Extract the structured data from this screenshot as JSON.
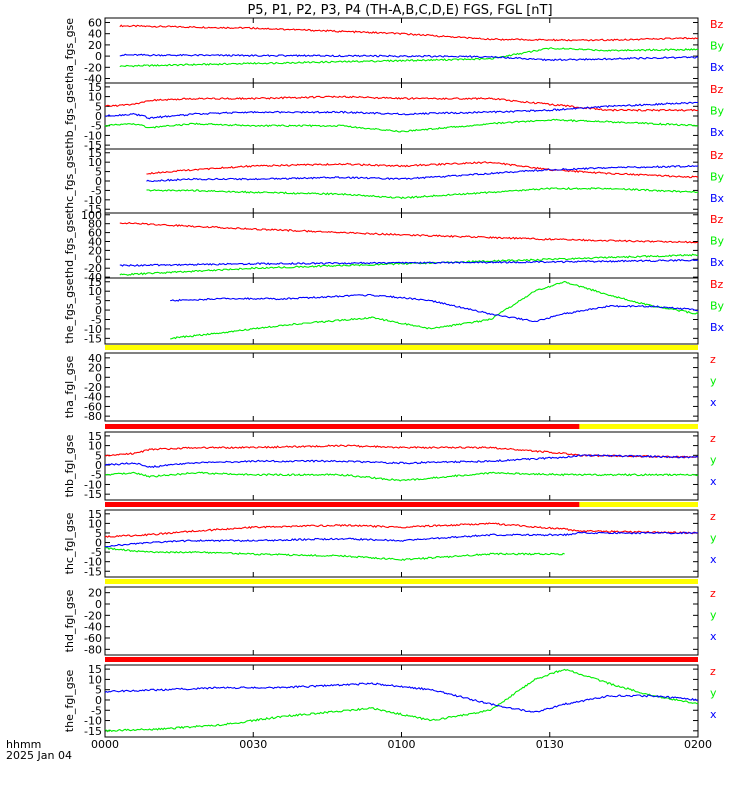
{
  "title": "P5, P1, P2, P3, P4 (TH-A,B,C,D,E) FGS, FGL [nT]",
  "footer": {
    "label_line1": "hhmm",
    "label_line2": "2025 Jan 04"
  },
  "time_axis": {
    "ticks": [
      "0000",
      "0030",
      "0100",
      "0130",
      "0200"
    ],
    "range_hours": [
      0,
      2
    ]
  },
  "colors": {
    "x": "#0000ff",
    "y": "#00ee00",
    "z": "#ff0000",
    "bar_red": "#ff0000",
    "bar_yellow": "#ffff00"
  },
  "chart_data": [
    {
      "type": "line",
      "ylabel": "tha_fgs_gse",
      "ylim": [
        -48,
        68
      ],
      "ticks": [
        "60",
        "40",
        "20",
        "0",
        "-20",
        "-40"
      ],
      "series": [
        {
          "name": "Bz",
          "color": "red",
          "x": [
            0.05,
            0.5,
            1.0,
            1.3,
            1.6,
            2.0
          ],
          "y": [
            54,
            50,
            40,
            30,
            28,
            32
          ]
        },
        {
          "name": "By",
          "color": "green",
          "x": [
            0.05,
            0.5,
            1.0,
            1.3,
            1.5,
            1.7,
            2.0
          ],
          "y": [
            -18,
            -13,
            -8,
            -5,
            14,
            10,
            12
          ]
        },
        {
          "name": "Bx",
          "color": "blue",
          "x": [
            0.05,
            0.5,
            1.0,
            1.3,
            1.5,
            1.7,
            2.0
          ],
          "y": [
            2,
            1,
            0,
            -1,
            -7,
            -5,
            -2
          ]
        }
      ]
    },
    {
      "type": "line",
      "ylabel": "thb_fgs_gse",
      "ylim": [
        -17,
        17
      ],
      "ticks": [
        "15",
        "10",
        "5",
        "0",
        "-5",
        "-10",
        "-15"
      ],
      "series": [
        {
          "name": "Bz",
          "color": "red",
          "x": [
            0,
            0.1,
            0.15,
            0.3,
            0.5,
            0.8,
            1.0,
            1.3,
            1.5,
            1.7,
            2.0
          ],
          "y": [
            5,
            6,
            8,
            9,
            9,
            10,
            9,
            9,
            6,
            3,
            3
          ]
        },
        {
          "name": "By",
          "color": "green",
          "x": [
            0,
            0.1,
            0.15,
            0.3,
            0.5,
            0.8,
            1.0,
            1.3,
            1.5,
            1.7,
            2.0
          ],
          "y": [
            -5,
            -4,
            -6,
            -4,
            -5,
            -5,
            -8,
            -4,
            -2,
            -3,
            -5
          ]
        },
        {
          "name": "Bx",
          "color": "blue",
          "x": [
            0,
            0.1,
            0.15,
            0.3,
            0.5,
            0.8,
            1.0,
            1.3,
            1.5,
            1.7,
            2.0
          ],
          "y": [
            0,
            1,
            -1,
            1,
            2,
            2,
            1,
            2,
            3,
            5,
            7
          ]
        }
      ]
    },
    {
      "type": "line",
      "ylabel": "thc_fgs_gse",
      "ylim": [
        -17,
        17
      ],
      "ticks": [
        "15",
        "10",
        "5",
        "0",
        "-5",
        "-10",
        "-15"
      ],
      "series": [
        {
          "name": "Bz",
          "color": "red",
          "x": [
            0.14,
            0.3,
            0.5,
            0.8,
            1.0,
            1.3,
            1.5,
            1.7,
            2.0
          ],
          "y": [
            4,
            6,
            8,
            9,
            8,
            10,
            6,
            4,
            2
          ]
        },
        {
          "name": "By",
          "color": "green",
          "x": [
            0.14,
            0.3,
            0.5,
            0.8,
            1.0,
            1.3,
            1.5,
            1.7,
            2.0
          ],
          "y": [
            -5,
            -5,
            -6,
            -7,
            -9,
            -6,
            -4,
            -4,
            -6
          ]
        },
        {
          "name": "Bx",
          "color": "blue",
          "x": [
            0.14,
            0.3,
            0.5,
            0.8,
            1.0,
            1.3,
            1.5,
            1.7,
            2.0
          ],
          "y": [
            0,
            1,
            1,
            2,
            1,
            4,
            6,
            7,
            8
          ]
        }
      ]
    },
    {
      "type": "line",
      "ylabel": "thd_fgs_gse",
      "ylim": [
        -42,
        104
      ],
      "ticks": [
        "100",
        "80",
        "60",
        "40",
        "20",
        "0",
        "-20",
        "-40"
      ],
      "series": [
        {
          "name": "Bz",
          "color": "red",
          "x": [
            0.05,
            0.5,
            1.0,
            1.5,
            2.0
          ],
          "y": [
            82,
            68,
            55,
            45,
            38
          ]
        },
        {
          "name": "By",
          "color": "green",
          "x": [
            0.05,
            0.5,
            1.0,
            1.5,
            2.0
          ],
          "y": [
            -35,
            -20,
            -10,
            0,
            10
          ]
        },
        {
          "name": "Bx",
          "color": "blue",
          "x": [
            0.05,
            0.5,
            1.0,
            1.5,
            2.0
          ],
          "y": [
            -14,
            -10,
            -8,
            -6,
            -2
          ]
        }
      ]
    },
    {
      "type": "line",
      "ylabel": "the_fgs_gse",
      "ylim": [
        -18,
        17
      ],
      "ticks": [
        "15",
        "10",
        "5",
        "0",
        "-5",
        "-10",
        "-15"
      ],
      "series": [
        {
          "name": "Bz",
          "color": "red",
          "x": [],
          "y": []
        },
        {
          "name": "By",
          "color": "green",
          "x": [
            0.22,
            0.4,
            0.6,
            0.9,
            1.1,
            1.3,
            1.45,
            1.55,
            1.7,
            1.85,
            2.0
          ],
          "y": [
            -15,
            -12,
            -8,
            -4,
            -10,
            -5,
            10,
            15,
            8,
            2,
            -2
          ]
        },
        {
          "name": "Bx",
          "color": "blue",
          "x": [
            0.22,
            0.4,
            0.6,
            0.9,
            1.1,
            1.3,
            1.45,
            1.55,
            1.7,
            1.85,
            2.0
          ],
          "y": [
            5,
            6,
            6,
            8,
            5,
            -2,
            -6,
            -2,
            2,
            2,
            0
          ]
        }
      ]
    },
    {
      "type": "line",
      "ylabel": "tha_fgl_gse",
      "ylim": [
        -90,
        50
      ],
      "ticks": [
        "40",
        "20",
        "0",
        "-20",
        "-40",
        "-60",
        "-80"
      ],
      "bar": {
        "color": "yellow",
        "segments": [
          [
            0,
            2
          ]
        ]
      },
      "series": [
        {
          "name": "z",
          "color": "red",
          "x": [],
          "y": []
        },
        {
          "name": "y",
          "color": "green",
          "x": [],
          "y": []
        },
        {
          "name": "x",
          "color": "blue",
          "x": [],
          "y": []
        }
      ]
    },
    {
      "type": "line",
      "ylabel": "thb_fgl_gse",
      "ylim": [
        -18,
        17
      ],
      "ticks": [
        "15",
        "10",
        "5",
        "0",
        "-5",
        "-10",
        "-15"
      ],
      "bar": {
        "color": "mixed",
        "segments": [
          [
            0,
            1.6,
            "red"
          ],
          [
            1.6,
            2,
            "yellow"
          ]
        ]
      },
      "series": [
        {
          "name": "z",
          "color": "red",
          "x": [
            0,
            0.1,
            0.15,
            0.3,
            0.5,
            0.8,
            1.0,
            1.3,
            1.55,
            1.6,
            2.0
          ],
          "y": [
            5,
            6,
            8,
            9,
            9,
            10,
            9,
            9,
            6,
            5,
            4
          ]
        },
        {
          "name": "y",
          "color": "green",
          "x": [
            0,
            0.1,
            0.15,
            0.3,
            0.5,
            0.8,
            1.0,
            1.3,
            1.55,
            1.6,
            2.0
          ],
          "y": [
            -5,
            -4,
            -6,
            -4,
            -5,
            -5,
            -8,
            -4,
            -5,
            -5,
            -5
          ]
        },
        {
          "name": "x",
          "color": "blue",
          "x": [
            0,
            0.1,
            0.15,
            0.3,
            0.5,
            0.8,
            1.0,
            1.3,
            1.55,
            1.6,
            2.0
          ],
          "y": [
            0,
            1,
            -1,
            1,
            2,
            2,
            1,
            2,
            4,
            5,
            4
          ]
        }
      ]
    },
    {
      "type": "line",
      "ylabel": "thc_fgl_gse",
      "ylim": [
        -18,
        17
      ],
      "ticks": [
        "15",
        "10",
        "5",
        "0",
        "-5",
        "-10",
        "-15"
      ],
      "bar": {
        "color": "mixed",
        "segments": [
          [
            0,
            1.6,
            "red"
          ],
          [
            1.6,
            2,
            "yellow"
          ]
        ]
      },
      "series": [
        {
          "name": "z",
          "color": "red",
          "x": [
            0,
            0.14,
            0.3,
            0.5,
            0.8,
            1.0,
            1.3,
            1.55,
            1.6,
            2.0
          ],
          "y": [
            3,
            4,
            6,
            8,
            9,
            8,
            10,
            7,
            6,
            5
          ]
        },
        {
          "name": "y",
          "color": "green",
          "x": [
            0,
            0.14,
            0.3,
            0.5,
            0.8,
            1.0,
            1.3,
            1.55
          ],
          "y": [
            -3,
            -5,
            -5,
            -6,
            -7,
            -9,
            -6,
            -6
          ]
        },
        {
          "name": "x",
          "color": "blue",
          "x": [
            0,
            0.14,
            0.3,
            0.5,
            0.8,
            1.0,
            1.3,
            1.55,
            1.6,
            2.0
          ],
          "y": [
            -2,
            0,
            1,
            1,
            2,
            1,
            4,
            4,
            5,
            5
          ]
        }
      ]
    },
    {
      "type": "line",
      "ylabel": "thd_fgl_gse",
      "ylim": [
        -90,
        30
      ],
      "ticks": [
        "20",
        "0",
        "-20",
        "-40",
        "-60",
        "-80"
      ],
      "bar": {
        "color": "yellow",
        "segments": [
          [
            0,
            2
          ]
        ]
      },
      "series": [
        {
          "name": "z",
          "color": "red",
          "x": [],
          "y": []
        },
        {
          "name": "y",
          "color": "green",
          "x": [],
          "y": []
        },
        {
          "name": "x",
          "color": "blue",
          "x": [],
          "y": []
        }
      ]
    },
    {
      "type": "line",
      "ylabel": "the_fgl_gse",
      "ylim": [
        -18,
        17
      ],
      "ticks": [
        "15",
        "10",
        "5",
        "0",
        "-5",
        "-10",
        "-15"
      ],
      "bar": {
        "color": "red",
        "segments": [
          [
            0,
            2
          ]
        ]
      },
      "series": [
        {
          "name": "z",
          "color": "red",
          "x": [],
          "y": []
        },
        {
          "name": "y",
          "color": "green",
          "x": [
            0,
            0.2,
            0.4,
            0.6,
            0.9,
            1.1,
            1.3,
            1.45,
            1.55,
            1.7,
            1.85,
            2.0
          ],
          "y": [
            -15,
            -14,
            -12,
            -8,
            -4,
            -10,
            -5,
            10,
            15,
            8,
            2,
            -2
          ]
        },
        {
          "name": "x",
          "color": "blue",
          "x": [
            0,
            0.2,
            0.4,
            0.6,
            0.9,
            1.1,
            1.3,
            1.45,
            1.55,
            1.7,
            1.85,
            2.0
          ],
          "y": [
            4,
            5,
            6,
            6,
            8,
            5,
            -2,
            -6,
            -2,
            2,
            2,
            0
          ]
        }
      ]
    }
  ]
}
